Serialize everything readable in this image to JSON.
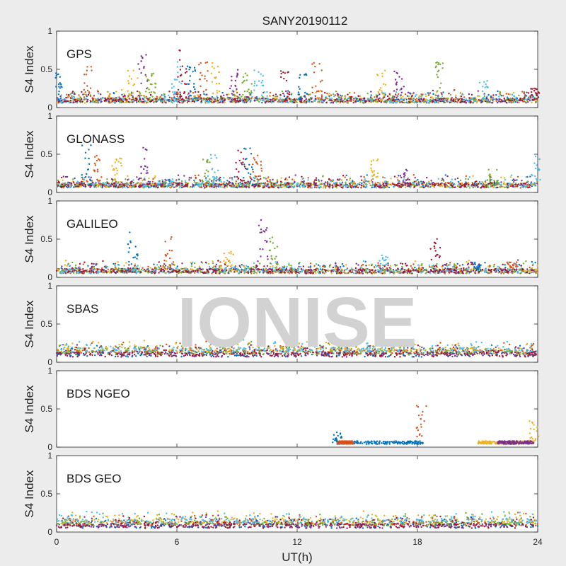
{
  "figure": {
    "title": "SANY20190112",
    "watermark": "IONISE",
    "xlabel": "UT(h)",
    "ylabel": "S4 Index"
  },
  "chart_data": {
    "type": "scatter",
    "title": "SANY20190112",
    "xlabel": "UT(h)",
    "xlim": [
      0,
      24
    ],
    "xticks": [
      0,
      6,
      12,
      18,
      24
    ],
    "ylim": [
      0,
      1
    ],
    "yticks": [
      0,
      0.5,
      1
    ],
    "panels": [
      {
        "label": "GPS",
        "ylabel": "S4 Index",
        "baseline": 0.09,
        "spikes": [
          [
            0.2,
            0.45
          ],
          [
            1.6,
            0.55
          ],
          [
            3.8,
            0.5
          ],
          [
            4.3,
            0.7
          ],
          [
            4.7,
            0.55
          ],
          [
            6.0,
            0.6
          ],
          [
            6.3,
            0.8
          ],
          [
            6.7,
            0.55
          ],
          [
            7.3,
            0.6
          ],
          [
            7.9,
            0.65
          ],
          [
            8.8,
            0.5
          ],
          [
            9.5,
            0.45
          ],
          [
            10.1,
            0.53
          ],
          [
            11.4,
            0.5
          ],
          [
            12.3,
            0.45
          ],
          [
            13.0,
            0.6
          ],
          [
            16.2,
            0.5
          ],
          [
            17.1,
            0.5
          ],
          [
            19.1,
            0.6
          ],
          [
            21.3,
            0.35
          ],
          [
            23.9,
            0.25
          ]
        ]
      },
      {
        "label": "GLONASS",
        "ylabel": "S4 Index",
        "baseline": 0.09,
        "spikes": [
          [
            1.5,
            0.65
          ],
          [
            2.0,
            0.5
          ],
          [
            3.0,
            0.45
          ],
          [
            4.3,
            0.6
          ],
          [
            7.5,
            0.45
          ],
          [
            7.9,
            0.5
          ],
          [
            9.2,
            0.55
          ],
          [
            9.6,
            0.65
          ],
          [
            10.0,
            0.53
          ],
          [
            15.8,
            0.45
          ],
          [
            17.3,
            0.3
          ],
          [
            21.8,
            0.3
          ],
          [
            23.9,
            0.5
          ]
        ]
      },
      {
        "label": "GALILEO",
        "ylabel": "S4 Index",
        "baseline": 0.08,
        "spikes": [
          [
            3.8,
            0.6
          ],
          [
            5.6,
            0.55
          ],
          [
            8.6,
            0.35
          ],
          [
            10.3,
            0.75
          ],
          [
            10.8,
            0.55
          ],
          [
            16.3,
            0.3
          ],
          [
            18.9,
            0.55
          ],
          [
            21.0,
            0.2
          ],
          [
            22.7,
            0.2
          ]
        ]
      },
      {
        "label": "SBAS",
        "ylabel": "S4 Index",
        "baseline": 0.13,
        "spikes": []
      },
      {
        "label": "BDS NGEO",
        "ylabel": "S4 Index",
        "baseline": 0.06,
        "spikes": [
          [
            14.0,
            0.2
          ],
          [
            18.2,
            0.55
          ],
          [
            23.8,
            0.35
          ]
        ]
      },
      {
        "label": "BDS GEO",
        "ylabel": "S4 Index",
        "baseline": 0.11,
        "spikes": []
      }
    ],
    "colors": [
      "#0072BD",
      "#D95319",
      "#EDB120",
      "#7E2F8E",
      "#77AC30",
      "#4DBEEE",
      "#A2142F"
    ]
  }
}
